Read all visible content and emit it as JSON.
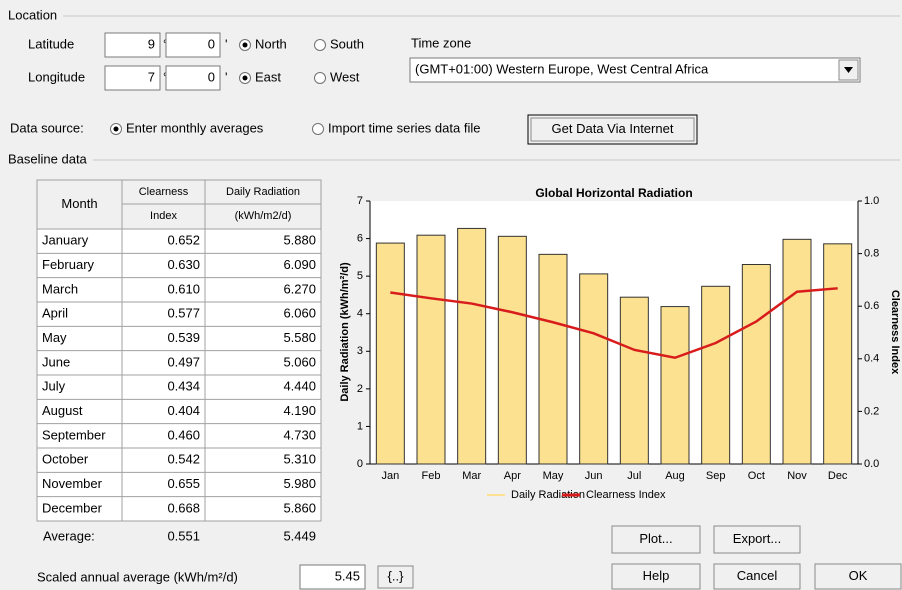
{
  "location": {
    "title": "Location",
    "degree_symbol": "°",
    "minute_symbol": "'",
    "latitude": {
      "label": "Latitude",
      "degrees": "9",
      "minutes": "0",
      "options": [
        "North",
        "South"
      ],
      "selected": "North"
    },
    "longitude": {
      "label": "Longitude",
      "degrees": "7",
      "minutes": "0",
      "options": [
        "East",
        "West"
      ],
      "selected": "East"
    },
    "time_zone": {
      "label": "Time zone",
      "value": "(GMT+01:00) Western Europe, West Central Africa"
    }
  },
  "data_source": {
    "label": "Data source:",
    "options": [
      "Enter monthly averages",
      "Import time series data file"
    ],
    "selected": "Enter monthly averages",
    "button": "Get Data Via Internet"
  },
  "baseline": {
    "title": "Baseline data",
    "table": {
      "headers": [
        [
          "Month"
        ],
        [
          "Clearness",
          "Index"
        ],
        [
          "Daily Radiation",
          "(kWh/m2/d)"
        ]
      ],
      "rows": [
        [
          "January",
          "0.652",
          "5.880"
        ],
        [
          "February",
          "0.630",
          "6.090"
        ],
        [
          "March",
          "0.610",
          "6.270"
        ],
        [
          "April",
          "0.577",
          "6.060"
        ],
        [
          "May",
          "0.539",
          "5.580"
        ],
        [
          "June",
          "0.497",
          "5.060"
        ],
        [
          "July",
          "0.434",
          "4.440"
        ],
        [
          "August",
          "0.404",
          "4.190"
        ],
        [
          "September",
          "0.460",
          "4.730"
        ],
        [
          "October",
          "0.542",
          "5.310"
        ],
        [
          "November",
          "0.655",
          "5.980"
        ],
        [
          "December",
          "0.668",
          "5.860"
        ]
      ],
      "average": [
        "Average:",
        "0.551",
        "5.449"
      ]
    }
  },
  "chart": {
    "type": "bar",
    "title": "Global Horizontal Radiation",
    "ylabel": "Daily Radiation (kWh/m²/d)",
    "y2label": "Clearness Index",
    "categories": [
      "Jan",
      "Feb",
      "Mar",
      "Apr",
      "May",
      "Jun",
      "Jul",
      "Aug",
      "Sep",
      "Oct",
      "Nov",
      "Dec"
    ],
    "series": [
      {
        "name": "Daily Radiation",
        "type": "bar",
        "color": "#fbe190",
        "values": [
          5.88,
          6.09,
          6.27,
          6.06,
          5.58,
          5.06,
          4.44,
          4.19,
          4.73,
          5.31,
          5.98,
          5.86
        ]
      },
      {
        "name": "Clearness Index",
        "type": "line",
        "axis": "y2",
        "color": "#d81c1c",
        "values": [
          0.652,
          0.63,
          0.61,
          0.577,
          0.539,
          0.497,
          0.434,
          0.404,
          0.46,
          0.542,
          0.655,
          0.668
        ]
      }
    ],
    "ylim": [
      0,
      7
    ],
    "yticks": [
      0,
      1,
      2,
      3,
      4,
      5,
      6,
      7
    ],
    "y2lim": [
      0,
      1
    ],
    "y2ticks": [
      {
        "value": 0,
        "label": "0.0"
      },
      0.2,
      0.4,
      0.6,
      0.8,
      {
        "value": 1,
        "label": "1.0"
      }
    ]
  },
  "scaled": {
    "label": "Scaled annual average (kWh/m²/d)",
    "value": "5.45",
    "button": "{..}"
  },
  "buttons": {
    "plot": "Plot...",
    "export": "Export...",
    "help": "Help",
    "cancel": "Cancel",
    "ok": "OK"
  }
}
